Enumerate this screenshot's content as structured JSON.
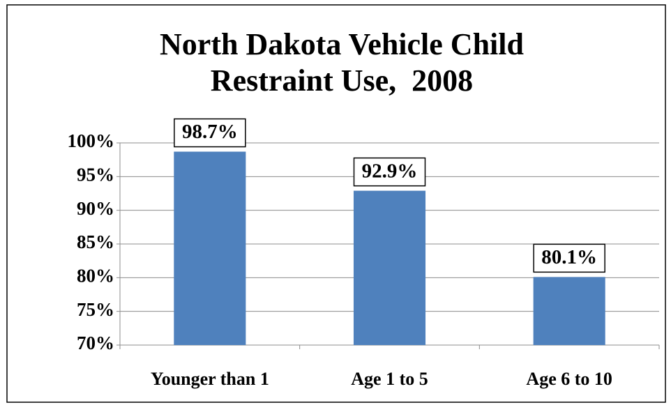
{
  "chart_data": {
    "type": "bar",
    "title": [
      "North Dakota Vehicle Child",
      "Restraint Use,  2008"
    ],
    "categories": [
      "Younger than 1",
      "Age 1 to 5",
      "Age 6 to 10"
    ],
    "values": [
      98.7,
      92.9,
      80.1
    ],
    "value_labels": [
      "98.7%",
      "92.9%",
      "80.1%"
    ],
    "color": "#4f81bd",
    "ylim": [
      70,
      100
    ],
    "yticks": [
      {
        "value": 70,
        "label": "70%"
      },
      {
        "value": 75,
        "label": "75%"
      },
      {
        "value": 80,
        "label": "80%"
      },
      {
        "value": 85,
        "label": "85%"
      },
      {
        "value": 90,
        "label": "90%"
      },
      {
        "value": 95,
        "label": "95%"
      },
      {
        "value": 100,
        "label": "100%"
      }
    ],
    "grid": true
  }
}
